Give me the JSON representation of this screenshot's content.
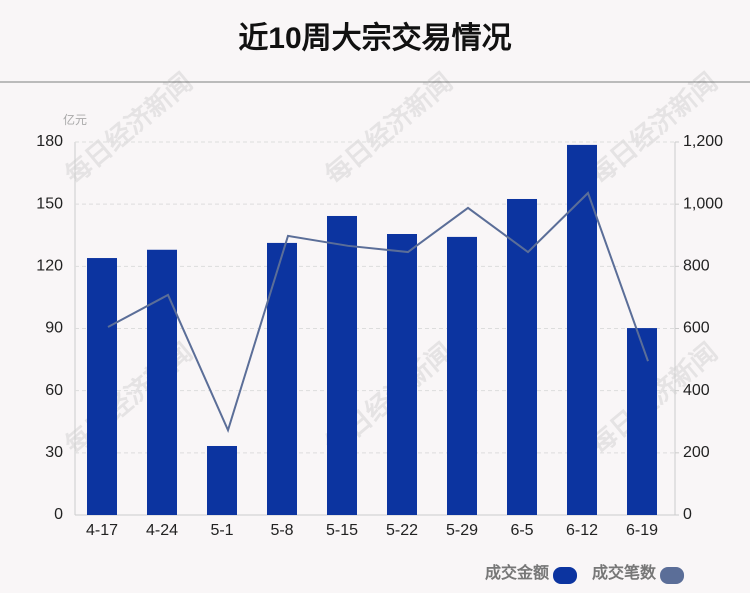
{
  "chart_data": {
    "type": "bar_line",
    "title": "近10周大宗交易情况",
    "y_unit": "亿元",
    "watermark": "每日经济新闻",
    "categories": [
      "4-17",
      "4-24",
      "5-1",
      "5-8",
      "5-15",
      "5-22",
      "5-29",
      "6-5",
      "6-12",
      "6-19"
    ],
    "series": [
      {
        "name": "成交金额",
        "type": "bar",
        "color": "#0c34a0",
        "values": [
          124.0,
          128.0,
          33.3,
          131.3,
          144.3,
          135.6,
          134.2,
          152.5,
          178.6,
          90.2
        ]
      },
      {
        "name": "成交笔数",
        "type": "line",
        "axis": "y2",
        "color": "#5b6e98",
        "values": [
          605,
          708,
          273,
          898,
          866,
          846,
          988,
          846,
          1036,
          495
        ]
      }
    ],
    "ylim": [
      0,
      180
    ],
    "yticks": [
      0,
      30,
      60,
      90,
      120,
      150,
      180
    ],
    "y2lim": [
      0,
      1200
    ],
    "y2ticks": [
      0,
      200,
      400,
      600,
      800,
      {
        "value": 1000,
        "label": "1,000"
      },
      {
        "value": 1200,
        "label": "1,200"
      }
    ],
    "grid": true
  }
}
